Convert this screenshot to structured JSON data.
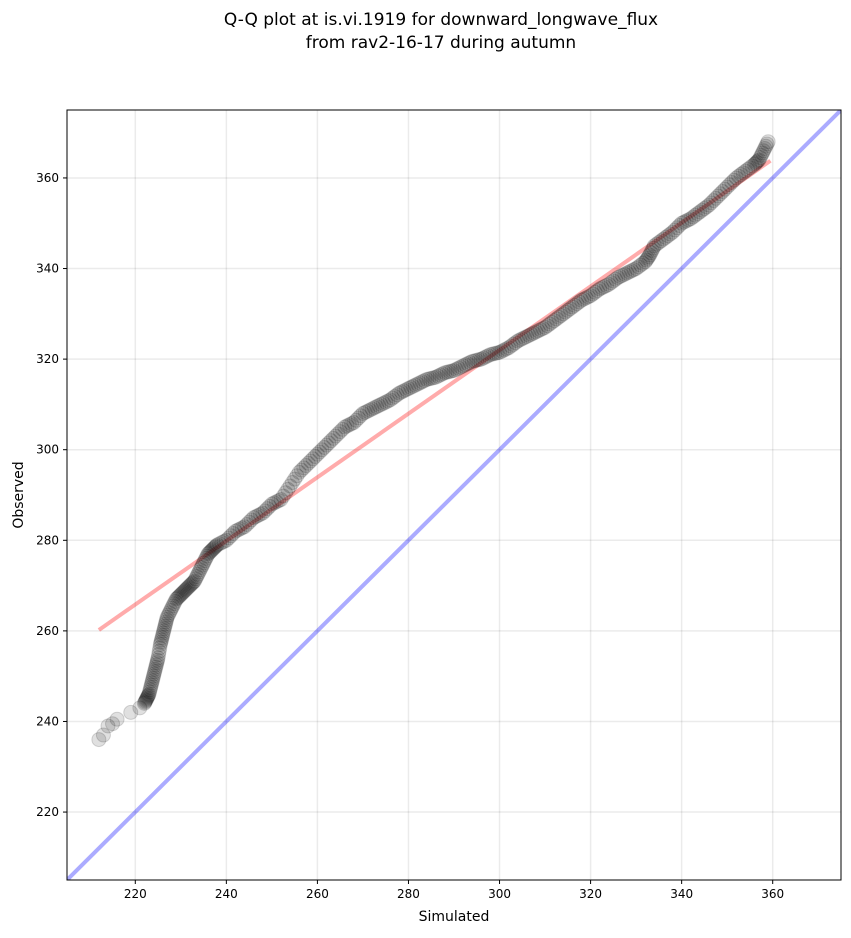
{
  "chart_data": {
    "type": "scatter",
    "title_line1": "Q-Q plot at is.vi.1919 for downward_longwave_flux",
    "title_line2": "from rav2-16-17 during autumn",
    "xlabel": "Simulated",
    "ylabel": "Observed",
    "xlim": [
      205,
      375
    ],
    "ylim": [
      205,
      375
    ],
    "xticks": [
      220,
      240,
      260,
      280,
      300,
      320,
      340,
      360
    ],
    "yticks": [
      220,
      240,
      260,
      280,
      300,
      320,
      340,
      360
    ],
    "grid": true,
    "colors": {
      "points": "#000000",
      "fit_line": "#ff0000",
      "identity_line": "#0000ff"
    },
    "fit_line": {
      "x": [
        212,
        359.5
      ],
      "y": [
        260.2,
        363.8
      ]
    },
    "identity_line": {
      "x": [
        205,
        375
      ],
      "y": [
        205,
        375
      ]
    },
    "points": [
      [
        212,
        236
      ],
      [
        213,
        237
      ],
      [
        214,
        239
      ],
      [
        215,
        239.5
      ],
      [
        216,
        240.5
      ],
      [
        219,
        242
      ],
      [
        221,
        243
      ],
      [
        222,
        244
      ],
      [
        222.5,
        245
      ],
      [
        223,
        246
      ],
      [
        223.5,
        248
      ],
      [
        224,
        250
      ],
      [
        224.5,
        252
      ],
      [
        225,
        254
      ],
      [
        225.5,
        257
      ],
      [
        226,
        259
      ],
      [
        226.5,
        261
      ],
      [
        227,
        263
      ],
      [
        228,
        265
      ],
      [
        229,
        267
      ],
      [
        230,
        268
      ],
      [
        231,
        269
      ],
      [
        232,
        270
      ],
      [
        233,
        271
      ],
      [
        234,
        273
      ],
      [
        235,
        275
      ],
      [
        236,
        277
      ],
      [
        237,
        278
      ],
      [
        238,
        279
      ],
      [
        240,
        280
      ],
      [
        242,
        282
      ],
      [
        244,
        283
      ],
      [
        246,
        285
      ],
      [
        248,
        286
      ],
      [
        250,
        288
      ],
      [
        252,
        289
      ],
      [
        254,
        292
      ],
      [
        256,
        295
      ],
      [
        258,
        297
      ],
      [
        260,
        299
      ],
      [
        262,
        301
      ],
      [
        264,
        303
      ],
      [
        266,
        305
      ],
      [
        268,
        306
      ],
      [
        270,
        308
      ],
      [
        272,
        309
      ],
      [
        274,
        310
      ],
      [
        276,
        311
      ],
      [
        278,
        312.5
      ],
      [
        280,
        313.5
      ],
      [
        282,
        314.5
      ],
      [
        284,
        315.5
      ],
      [
        286,
        316
      ],
      [
        288,
        317
      ],
      [
        290,
        317.5
      ],
      [
        292,
        318.5
      ],
      [
        294,
        319.5
      ],
      [
        296,
        320
      ],
      [
        298,
        321
      ],
      [
        300,
        321.5
      ],
      [
        302,
        322.5
      ],
      [
        304,
        324
      ],
      [
        306,
        325
      ],
      [
        308,
        326
      ],
      [
        310,
        327
      ],
      [
        312,
        328.5
      ],
      [
        314,
        330
      ],
      [
        316,
        331.5
      ],
      [
        318,
        333
      ],
      [
        320,
        334
      ],
      [
        322,
        335.5
      ],
      [
        324,
        336.5
      ],
      [
        326,
        338
      ],
      [
        328,
        339
      ],
      [
        330,
        340
      ],
      [
        332,
        341.5
      ],
      [
        333,
        343
      ],
      [
        334,
        345
      ],
      [
        336,
        346.5
      ],
      [
        338,
        348
      ],
      [
        340,
        350
      ],
      [
        342,
        351
      ],
      [
        344,
        352.5
      ],
      [
        346,
        354
      ],
      [
        348,
        356
      ],
      [
        350,
        358
      ],
      [
        352,
        360
      ],
      [
        354,
        361.5
      ],
      [
        356,
        363
      ],
      [
        357,
        364
      ],
      [
        358,
        366
      ],
      [
        359,
        368
      ]
    ]
  }
}
